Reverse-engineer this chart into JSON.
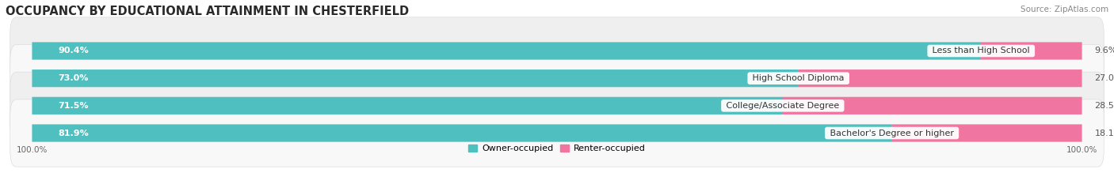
{
  "title": "OCCUPANCY BY EDUCATIONAL ATTAINMENT IN CHESTERFIELD",
  "source": "Source: ZipAtlas.com",
  "categories": [
    "Less than High School",
    "High School Diploma",
    "College/Associate Degree",
    "Bachelor's Degree or higher"
  ],
  "owner_pct": [
    90.4,
    73.0,
    71.5,
    81.9
  ],
  "renter_pct": [
    9.6,
    27.0,
    28.5,
    18.1
  ],
  "owner_color": "#50BFBF",
  "renter_color": "#F075A0",
  "row_bg_color_odd": "#EFEFEF",
  "row_bg_color_even": "#F8F8F8",
  "title_fontsize": 10.5,
  "source_fontsize": 7.5,
  "label_fontsize": 8,
  "pct_fontsize": 8,
  "legend_fontsize": 8,
  "axis_label_fontsize": 7.5
}
